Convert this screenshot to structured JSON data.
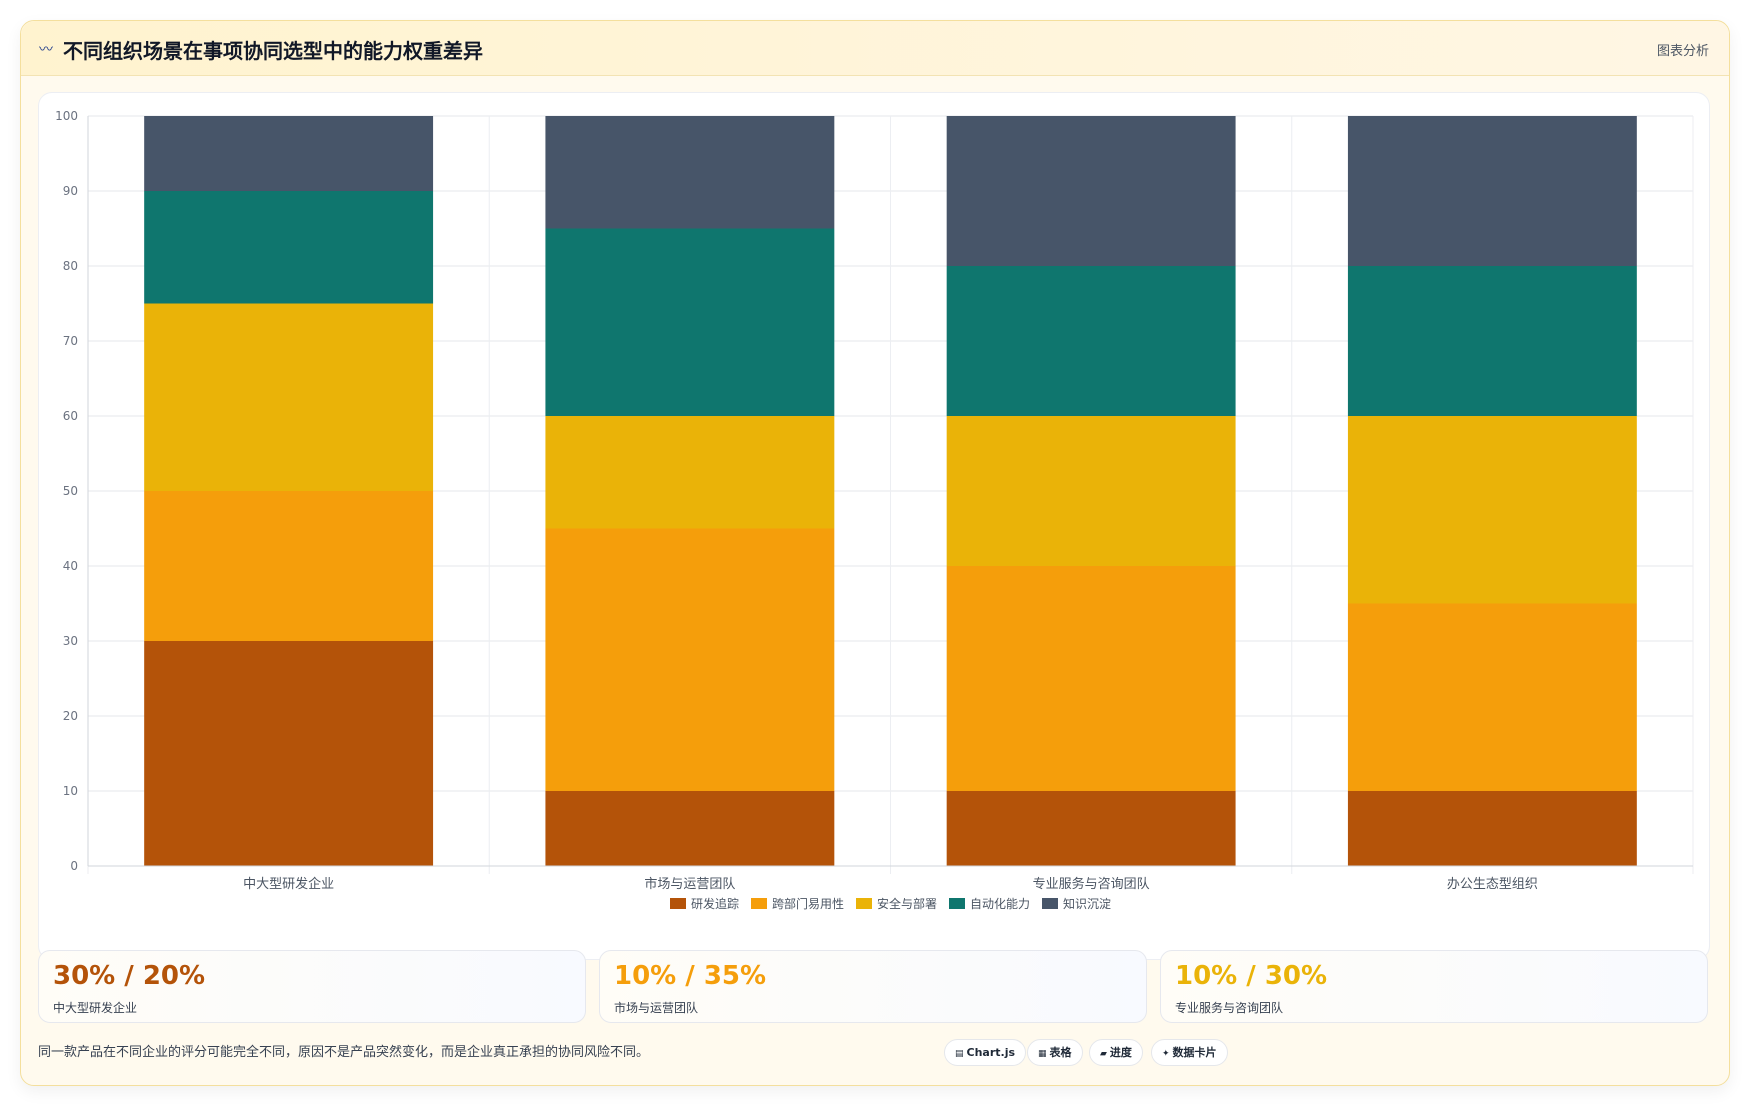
{
  "header": {
    "icon": "wave-icon",
    "title": "不同组织场景在事项协同选型中的能力权重差异",
    "tag": "图表分析"
  },
  "chart_data": {
    "type": "bar",
    "stacked": true,
    "categories": [
      "中大型研发企业",
      "市场与运营团队",
      "专业服务与咨询团队",
      "办公生态型组织"
    ],
    "series": [
      {
        "name": "研发追踪",
        "color": "#b45309",
        "values": [
          30,
          10,
          10,
          10
        ]
      },
      {
        "name": "跨部门易用性",
        "color": "#f59e0b",
        "values": [
          20,
          35,
          30,
          25
        ]
      },
      {
        "name": "安全与部署",
        "color": "#eab308",
        "values": [
          25,
          15,
          20,
          25
        ]
      },
      {
        "name": "自动化能力",
        "color": "#0f766e",
        "values": [
          15,
          25,
          20,
          20
        ]
      },
      {
        "name": "知识沉淀",
        "color": "#475569",
        "values": [
          10,
          15,
          20,
          20
        ]
      }
    ],
    "ylim": [
      0,
      100
    ],
    "yticks": [
      0,
      10,
      20,
      30,
      40,
      50,
      60,
      70,
      80,
      90,
      100
    ],
    "grid": true,
    "legend": "bottom"
  },
  "kpis": [
    {
      "value": "30% / 20%",
      "label": "中大型研发企业",
      "color": "#b45309"
    },
    {
      "value": "10% / 35%",
      "label": "市场与运营团队",
      "color": "#f59e0b"
    },
    {
      "value": "10% / 30%",
      "label": "专业服务与咨询团队",
      "color": "#eab308"
    }
  ],
  "footer": {
    "note": "同一款产品在不同企业的评分可能完全不同，原因不是产品突然变化，而是企业真正承担的协同风险不同。",
    "chips": [
      {
        "icon": "chart-icon",
        "glyph": "▤",
        "label": "Chart.js"
      },
      {
        "icon": "table-icon",
        "glyph": "▦",
        "label": "表格"
      },
      {
        "icon": "progress-icon",
        "glyph": "▰",
        "label": "进度"
      },
      {
        "icon": "card-icon",
        "glyph": "✦",
        "label": "数据卡片"
      }
    ]
  }
}
